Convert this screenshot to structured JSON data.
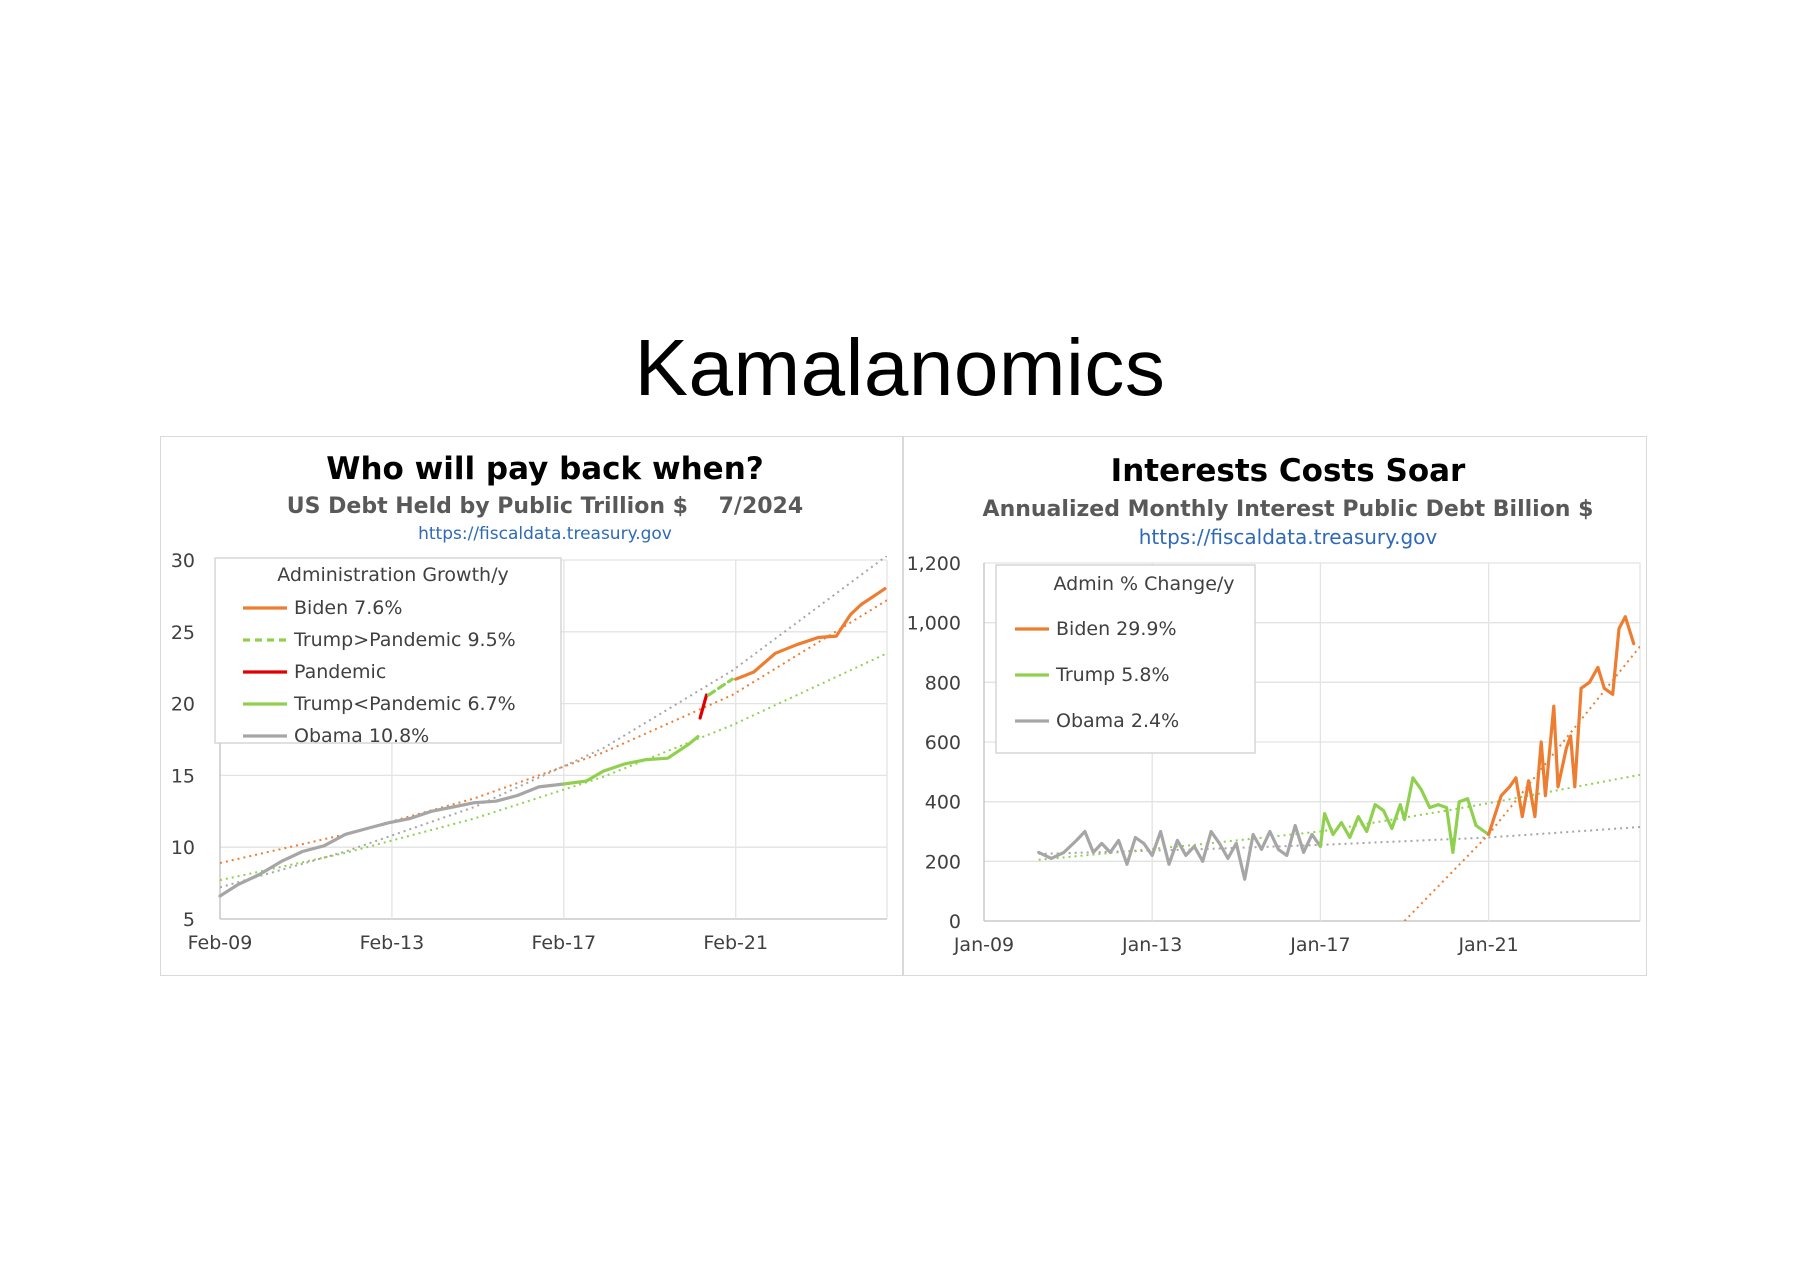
{
  "page": {
    "title": "Kamalanomics"
  },
  "chart_data": [
    {
      "id": "left",
      "type": "line",
      "title": "Who will pay back when?",
      "subtitle": "US Debt Held by Public Trillion $    7/2024",
      "source": "https://fiscaldata.treasury.gov",
      "x_tick_labels": [
        "Feb-09",
        "Feb-13",
        "Feb-17",
        "Feb-21"
      ],
      "x_ticks": [
        2009.08,
        2013.08,
        2017.08,
        2021.08
      ],
      "xlim": [
        2009.08,
        2024.6
      ],
      "ylim": [
        5,
        30
      ],
      "y_ticks": [
        5,
        10,
        15,
        20,
        25,
        30
      ],
      "grid": true,
      "legend_title": "Administration Growth/y",
      "legend_position": "top-left",
      "series": [
        {
          "name": "Biden 7.6%",
          "color": "#ed7d31",
          "dash": "none",
          "points": [
            [
              2021.08,
              21.7
            ],
            [
              2021.5,
              22.2
            ],
            [
              2022.0,
              23.5
            ],
            [
              2022.5,
              24.1
            ],
            [
              2023.0,
              24.6
            ],
            [
              2023.42,
              24.7
            ],
            [
              2023.75,
              26.2
            ],
            [
              2024.0,
              26.9
            ],
            [
              2024.3,
              27.5
            ],
            [
              2024.55,
              28.0
            ]
          ]
        },
        {
          "name": "Trump>Pandemic 9.5%",
          "color": "#8fd14f",
          "dash": "7,5",
          "points": [
            [
              2020.45,
              20.6
            ],
            [
              2021.0,
              21.7
            ]
          ]
        },
        {
          "name": "Pandemic",
          "color": "#e00000",
          "dash": "none",
          "points": [
            [
              2020.25,
              19.0
            ],
            [
              2020.4,
              20.6
            ]
          ]
        },
        {
          "name": "Trump<Pandemic 6.7%",
          "color": "#8fd14f",
          "dash": "none",
          "points": [
            [
              2017.08,
              14.4
            ],
            [
              2017.6,
              14.6
            ],
            [
              2018.0,
              15.3
            ],
            [
              2018.5,
              15.8
            ],
            [
              2019.0,
              16.1
            ],
            [
              2019.5,
              16.2
            ],
            [
              2020.0,
              17.2
            ],
            [
              2020.2,
              17.7
            ]
          ]
        },
        {
          "name": "Obama 10.8%",
          "color": "#a6a6a6",
          "dash": "none",
          "points": [
            [
              2009.08,
              6.6
            ],
            [
              2009.5,
              7.4
            ],
            [
              2010.0,
              8.1
            ],
            [
              2010.5,
              9.0
            ],
            [
              2011.0,
              9.7
            ],
            [
              2011.5,
              10.1
            ],
            [
              2012.0,
              10.9
            ],
            [
              2012.5,
              11.3
            ],
            [
              2013.0,
              11.7
            ],
            [
              2013.5,
              12.0
            ],
            [
              2014.0,
              12.5
            ],
            [
              2014.5,
              12.8
            ],
            [
              2015.0,
              13.1
            ],
            [
              2015.5,
              13.2
            ],
            [
              2016.0,
              13.6
            ],
            [
              2016.5,
              14.2
            ],
            [
              2017.08,
              14.4
            ]
          ]
        }
      ],
      "trendlines": [
        {
          "color": "#ed7d31",
          "points": [
            [
              2009.08,
              8.9
            ],
            [
              2012.0,
              10.9
            ],
            [
              2015.0,
              13.4
            ],
            [
              2018.0,
              16.6
            ],
            [
              2021.0,
              20.6
            ],
            [
              2024.6,
              27.2
            ]
          ]
        },
        {
          "color": "#8fd14f",
          "points": [
            [
              2009.08,
              7.7
            ],
            [
              2012.0,
              9.6
            ],
            [
              2015.0,
              12.0
            ],
            [
              2018.0,
              14.9
            ],
            [
              2021.0,
              18.5
            ],
            [
              2024.6,
              23.5
            ]
          ]
        },
        {
          "color": "#a6a6a6",
          "points": [
            [
              2009.08,
              7.2
            ],
            [
              2012.0,
              9.7
            ],
            [
              2015.0,
              12.8
            ],
            [
              2018.0,
              16.9
            ],
            [
              2021.0,
              22.3
            ],
            [
              2024.6,
              30.3
            ]
          ]
        }
      ]
    },
    {
      "id": "right",
      "type": "line",
      "title": "Interests Costs Soar",
      "subtitle": "Annualized Monthly Interest Public Debt Billion $",
      "source": "https://fiscaldata.treasury.gov",
      "x_tick_labels": [
        "Jan-09",
        "Jan-13",
        "Jan-17",
        "Jan-21"
      ],
      "x_ticks": [
        2009.0,
        2013.0,
        2017.0,
        2021.0
      ],
      "xlim": [
        2009.0,
        2024.6
      ],
      "ylim": [
        0,
        1200
      ],
      "y_ticks": [
        0,
        200,
        400,
        600,
        800,
        1000,
        1200
      ],
      "y_tick_labels": [
        "0",
        "200",
        "400",
        "600",
        "800",
        "1,000",
        "1,200"
      ],
      "grid": true,
      "legend_title": "Admin % Change/y",
      "legend_position": "top-left",
      "series": [
        {
          "name": "Biden 29.9%",
          "color": "#ed7d31",
          "points": [
            [
              2021.0,
              290
            ],
            [
              2021.3,
              420
            ],
            [
              2021.5,
              450
            ],
            [
              2021.65,
              480
            ],
            [
              2021.8,
              350
            ],
            [
              2021.95,
              470
            ],
            [
              2022.1,
              350
            ],
            [
              2022.25,
              600
            ],
            [
              2022.35,
              420
            ],
            [
              2022.55,
              720
            ],
            [
              2022.65,
              450
            ],
            [
              2022.85,
              580
            ],
            [
              2022.95,
              620
            ],
            [
              2023.05,
              450
            ],
            [
              2023.2,
              780
            ],
            [
              2023.4,
              800
            ],
            [
              2023.6,
              850
            ],
            [
              2023.75,
              780
            ],
            [
              2023.95,
              760
            ],
            [
              2024.1,
              980
            ],
            [
              2024.25,
              1020
            ],
            [
              2024.45,
              930
            ]
          ]
        },
        {
          "name": "Trump 5.8%",
          "color": "#8fd14f",
          "points": [
            [
              2017.0,
              250
            ],
            [
              2017.1,
              360
            ],
            [
              2017.3,
              290
            ],
            [
              2017.5,
              330
            ],
            [
              2017.7,
              280
            ],
            [
              2017.9,
              350
            ],
            [
              2018.1,
              300
            ],
            [
              2018.3,
              390
            ],
            [
              2018.5,
              370
            ],
            [
              2018.7,
              310
            ],
            [
              2018.9,
              390
            ],
            [
              2019.0,
              340
            ],
            [
              2019.2,
              480
            ],
            [
              2019.4,
              440
            ],
            [
              2019.6,
              380
            ],
            [
              2019.8,
              390
            ],
            [
              2020.0,
              380
            ],
            [
              2020.15,
              230
            ],
            [
              2020.3,
              400
            ],
            [
              2020.5,
              410
            ],
            [
              2020.7,
              320
            ],
            [
              2020.9,
              300
            ],
            [
              2021.0,
              290
            ]
          ]
        },
        {
          "name": "Obama 2.4%",
          "color": "#a6a6a6",
          "points": [
            [
              2010.3,
              230
            ],
            [
              2010.6,
              210
            ],
            [
              2010.9,
              230
            ],
            [
              2011.2,
              270
            ],
            [
              2011.4,
              300
            ],
            [
              2011.6,
              230
            ],
            [
              2011.8,
              260
            ],
            [
              2012.0,
              230
            ],
            [
              2012.2,
              270
            ],
            [
              2012.4,
              190
            ],
            [
              2012.6,
              280
            ],
            [
              2012.8,
              260
            ],
            [
              2013.0,
              220
            ],
            [
              2013.2,
              300
            ],
            [
              2013.4,
              190
            ],
            [
              2013.6,
              270
            ],
            [
              2013.8,
              220
            ],
            [
              2014.0,
              250
            ],
            [
              2014.2,
              200
            ],
            [
              2014.4,
              300
            ],
            [
              2014.6,
              260
            ],
            [
              2014.8,
              210
            ],
            [
              2015.0,
              260
            ],
            [
              2015.2,
              140
            ],
            [
              2015.4,
              290
            ],
            [
              2015.6,
              240
            ],
            [
              2015.8,
              300
            ],
            [
              2016.0,
              240
            ],
            [
              2016.2,
              220
            ],
            [
              2016.4,
              320
            ],
            [
              2016.6,
              230
            ],
            [
              2016.8,
              290
            ],
            [
              2017.0,
              250
            ]
          ]
        }
      ],
      "trendlines": [
        {
          "color": "#ed7d31",
          "points": [
            [
              2019.0,
              0
            ],
            [
              2021.0,
              290
            ],
            [
              2024.6,
              920
            ]
          ]
        },
        {
          "color": "#8fd14f",
          "points": [
            [
              2010.3,
              205
            ],
            [
              2014.0,
              255
            ],
            [
              2017.0,
              300
            ],
            [
              2020.0,
              370
            ],
            [
              2021.0,
              395
            ],
            [
              2024.6,
              490
            ]
          ]
        },
        {
          "color": "#a6a6a6",
          "points": [
            [
              2010.3,
              225
            ],
            [
              2014.0,
              240
            ],
            [
              2017.0,
              255
            ],
            [
              2021.0,
              280
            ],
            [
              2024.6,
              315
            ]
          ]
        }
      ]
    }
  ]
}
